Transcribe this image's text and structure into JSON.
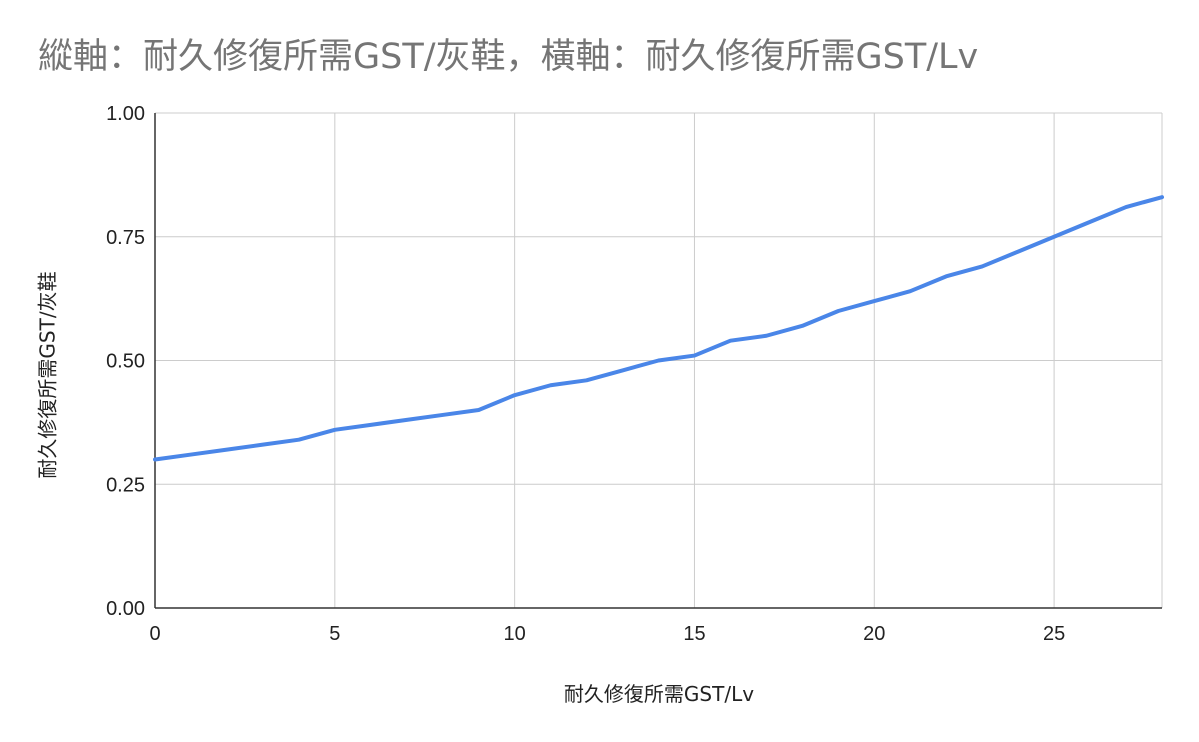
{
  "chart_data": {
    "type": "line",
    "title": "縱軸：耐久修復所需GST/灰鞋，橫軸：耐久修復所需GST/Lv",
    "xlabel": "耐久修復所需GST/Lv",
    "ylabel": "耐久修復所需GST/灰鞋",
    "xlim": [
      0,
      28
    ],
    "ylim": [
      0,
      1
    ],
    "x_ticks": [
      0,
      5,
      10,
      15,
      20,
      25
    ],
    "x_tick_labels": [
      "0",
      "5",
      "10",
      "15",
      "20",
      "25"
    ],
    "y_ticks": [
      0,
      0.25,
      0.5,
      0.75,
      1
    ],
    "y_tick_labels": [
      "0.00",
      "0.25",
      "0.50",
      "0.75",
      "1.00"
    ],
    "grid": true,
    "legend": "none",
    "series": [
      {
        "color": "#4a86e8",
        "x": [
          0,
          1,
          2,
          3,
          4,
          5,
          6,
          7,
          8,
          9,
          10,
          11,
          12,
          13,
          14,
          15,
          16,
          17,
          18,
          19,
          20,
          21,
          22,
          23,
          24,
          25,
          26,
          27,
          28
        ],
        "y": [
          0.3,
          0.31,
          0.32,
          0.33,
          0.34,
          0.36,
          0.37,
          0.38,
          0.39,
          0.4,
          0.43,
          0.45,
          0.46,
          0.48,
          0.5,
          0.51,
          0.54,
          0.55,
          0.57,
          0.6,
          0.62,
          0.64,
          0.67,
          0.69,
          0.72,
          0.75,
          0.78,
          0.81,
          0.83
        ]
      }
    ]
  }
}
